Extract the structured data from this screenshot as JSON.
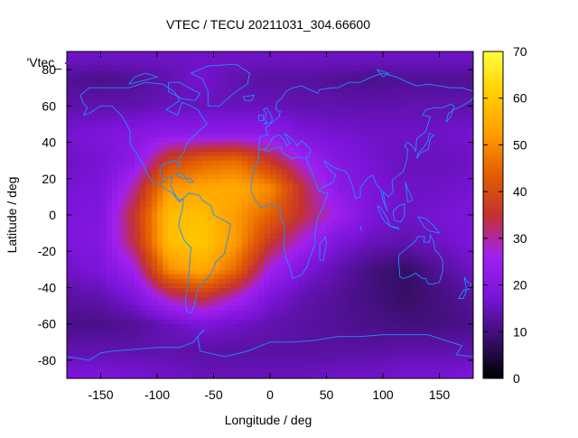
{
  "chart_data": {
    "type": "heatmap",
    "title": "VTEC / TECU 20211031_304.66600",
    "xlabel": "Longitude / deg",
    "ylabel": "Latitude / deg",
    "legend_label": "'Vtec_",
    "legend_placement": "top-left",
    "xlim": [
      -180,
      180
    ],
    "ylim": [
      -90,
      90
    ],
    "xticks": [
      "-150",
      "-100",
      "-50",
      "0",
      "50",
      "100",
      "150"
    ],
    "xtick_values": [
      -150,
      -100,
      -50,
      0,
      50,
      100,
      150
    ],
    "yticks": [
      "-80",
      "-60",
      "-40",
      "-20",
      "0",
      "20",
      "40",
      "60",
      "80"
    ],
    "ytick_values": [
      -80,
      -60,
      -40,
      -20,
      0,
      20,
      40,
      60,
      80
    ],
    "colorbar": {
      "range": [
        0,
        70
      ],
      "ticks": [
        "0",
        "10",
        "20",
        "30",
        "40",
        "50",
        "60",
        "70"
      ],
      "tick_values": [
        0,
        10,
        20,
        30,
        40,
        50,
        60,
        70
      ],
      "palette": [
        "#000000",
        "#3a0f6e",
        "#7a14d8",
        "#a020f0",
        "#c4322e",
        "#e35e00",
        "#ff9e00",
        "#ffd000",
        "#ffff40"
      ]
    },
    "grid": false,
    "coastline_color": "#1e90ff",
    "field_lon": [
      -180,
      -150,
      -120,
      -90,
      -60,
      -30,
      0,
      30,
      60,
      90,
      120,
      150,
      180
    ],
    "field_lat": [
      -87.5,
      -75,
      -60,
      -45,
      -30,
      -15,
      0,
      15,
      30,
      45,
      60,
      75,
      87.5
    ],
    "field_values": [
      [
        18,
        18,
        17,
        16,
        15,
        15,
        15,
        15,
        16,
        16,
        17,
        17,
        18
      ],
      [
        14,
        14,
        14,
        14,
        13,
        13,
        13,
        13,
        13,
        13,
        14,
        14,
        14
      ],
      [
        11,
        11,
        12,
        15,
        18,
        16,
        14,
        13,
        12,
        11,
        10,
        10,
        11
      ],
      [
        13,
        14,
        18,
        30,
        36,
        28,
        18,
        14,
        12,
        10,
        8,
        10,
        13
      ],
      [
        16,
        18,
        26,
        50,
        55,
        45,
        26,
        18,
        14,
        10,
        8,
        12,
        16
      ],
      [
        18,
        20,
        34,
        58,
        60,
        52,
        36,
        26,
        18,
        15,
        14,
        16,
        18
      ],
      [
        18,
        19,
        36,
        58,
        58,
        52,
        44,
        34,
        26,
        18,
        16,
        17,
        18
      ],
      [
        17,
        18,
        30,
        52,
        54,
        55,
        50,
        34,
        22,
        18,
        16,
        16,
        17
      ],
      [
        16,
        17,
        22,
        38,
        44,
        46,
        36,
        26,
        20,
        17,
        15,
        15,
        16
      ],
      [
        17,
        18,
        20,
        22,
        22,
        22,
        22,
        18,
        17,
        16,
        16,
        16,
        17
      ],
      [
        14,
        14,
        14,
        15,
        15,
        15,
        15,
        14,
        14,
        14,
        14,
        14,
        14
      ],
      [
        12,
        11,
        12,
        14,
        17,
        14,
        13,
        13,
        12,
        11,
        12,
        12,
        12
      ],
      [
        16,
        16,
        16,
        16,
        16,
        16,
        16,
        16,
        16,
        16,
        16,
        16,
        16
      ]
    ]
  }
}
